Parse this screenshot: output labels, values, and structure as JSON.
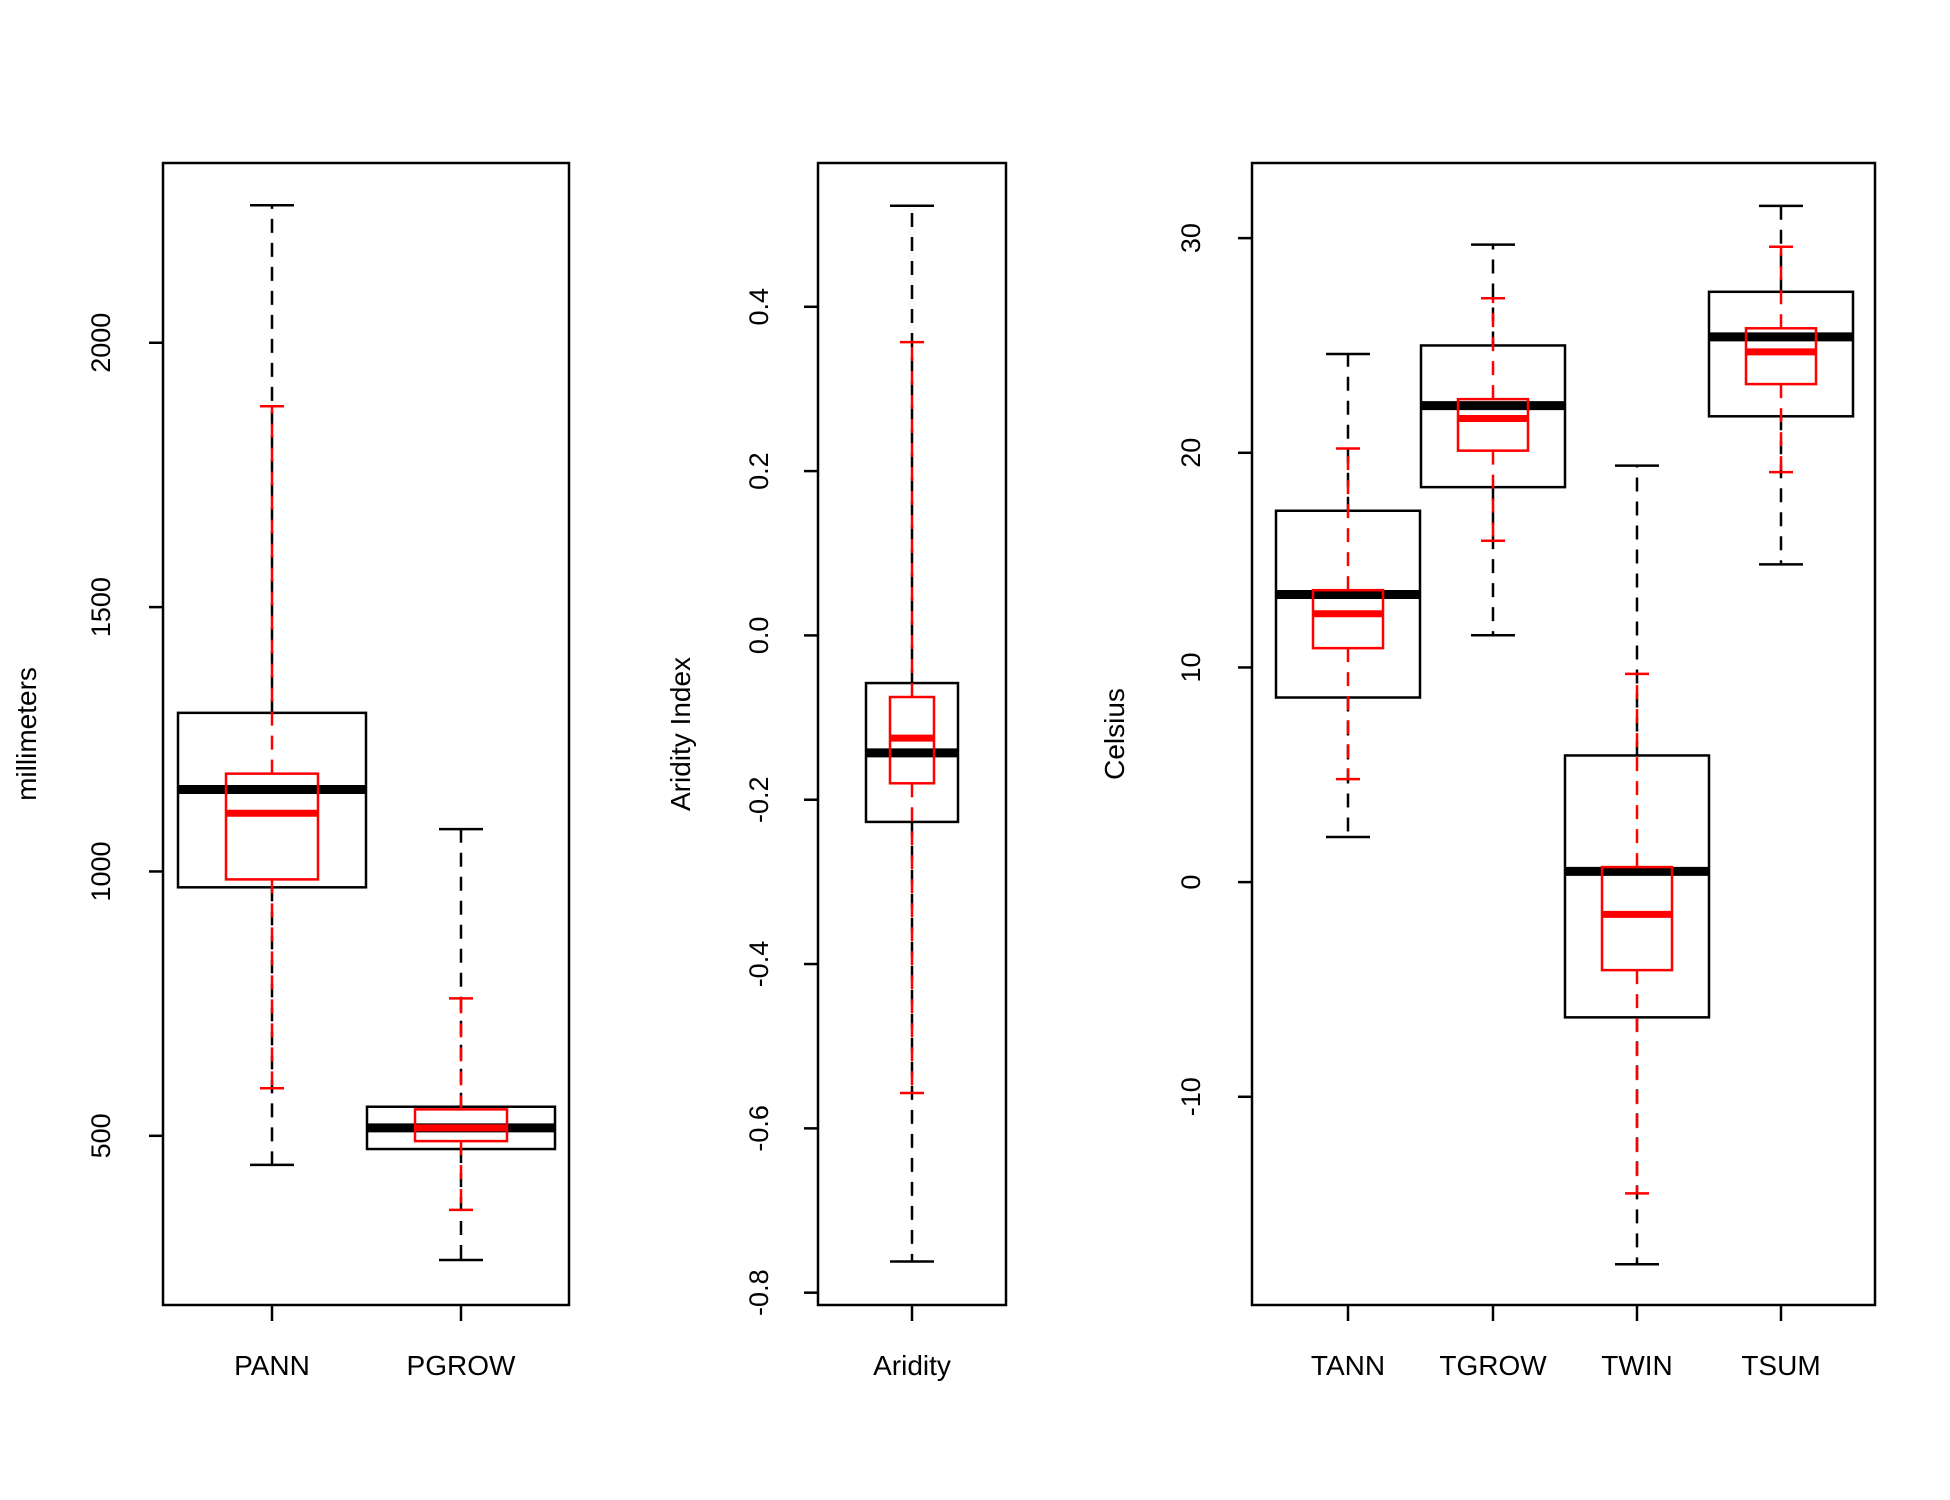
{
  "chart_data": [
    {
      "type": "boxplot",
      "ylabel": "millimeters",
      "ylim": [
        180,
        2340
      ],
      "yticks": [
        500,
        1000,
        1500,
        2000
      ],
      "ytick_labels": [
        "500",
        "1000",
        "1500",
        "2000"
      ],
      "categories": [
        "PANN",
        "PGROW"
      ],
      "series": [
        {
          "color": "#000000",
          "whisker_style": "dashed",
          "boxes": [
            {
              "min": 445,
              "q1": 970,
              "median": 1155,
              "q3": 1300,
              "max": 2260
            },
            {
              "min": 265,
              "q1": 475,
              "median": 515,
              "q3": 555,
              "max": 1080
            }
          ]
        },
        {
          "color": "#ff0000",
          "whisker_style": "dashed",
          "boxes": [
            {
              "min": 590,
              "q1": 985,
              "median": 1110,
              "q3": 1185,
              "max": 1880
            },
            {
              "min": 360,
              "q1": 490,
              "median": 515,
              "q3": 550,
              "max": 760
            }
          ]
        }
      ]
    },
    {
      "type": "boxplot",
      "ylabel": "Aridity Index",
      "ylim": [
        -0.815,
        0.575
      ],
      "yticks": [
        -0.8,
        -0.6,
        -0.4,
        -0.2,
        0.0,
        0.2,
        0.4
      ],
      "ytick_labels": [
        "-0.8",
        "-0.6",
        "-0.4",
        "-0.2",
        "0.0",
        "0.2",
        "0.4"
      ],
      "categories": [
        "Aridity"
      ],
      "series": [
        {
          "color": "#000000",
          "whisker_style": "dashed",
          "boxes": [
            {
              "min": -0.762,
              "q1": -0.227,
              "median": -0.143,
              "q3": -0.058,
              "max": 0.523
            }
          ]
        },
        {
          "color": "#ff0000",
          "whisker_style": "dashed",
          "boxes": [
            {
              "min": -0.557,
              "q1": -0.18,
              "median": -0.125,
              "q3": -0.075,
              "max": 0.357
            }
          ]
        }
      ]
    },
    {
      "type": "boxplot",
      "ylabel": "Celsius",
      "ylim": [
        -19.7,
        33.5
      ],
      "yticks": [
        -10,
        0,
        10,
        20,
        30
      ],
      "ytick_labels": [
        "-10",
        "0",
        "10",
        "20",
        "30"
      ],
      "categories": [
        "TANN",
        "TGROW",
        "TWIN",
        "TSUM"
      ],
      "series": [
        {
          "color": "#000000",
          "whisker_style": "dashed",
          "boxes": [
            {
              "min": 2.1,
              "q1": 8.6,
              "median": 13.4,
              "q3": 17.3,
              "max": 24.6
            },
            {
              "min": 11.5,
              "q1": 18.4,
              "median": 22.2,
              "q3": 25.0,
              "max": 29.7
            },
            {
              "min": -17.8,
              "q1": -6.3,
              "median": 0.5,
              "q3": 5.9,
              "max": 19.4
            },
            {
              "min": 14.8,
              "q1": 21.7,
              "median": 25.4,
              "q3": 27.5,
              "max": 31.5
            }
          ]
        },
        {
          "color": "#ff0000",
          "whisker_style": "dashed",
          "boxes": [
            {
              "min": 4.8,
              "q1": 10.9,
              "median": 12.5,
              "q3": 13.6,
              "max": 20.2
            },
            {
              "min": 15.9,
              "q1": 20.1,
              "median": 21.6,
              "q3": 22.5,
              "max": 27.2
            },
            {
              "min": -14.5,
              "q1": -4.1,
              "median": -1.5,
              "q3": 0.7,
              "max": 9.7
            },
            {
              "min": 19.1,
              "q1": 23.2,
              "median": 24.7,
              "q3": 25.8,
              "max": 29.6
            }
          ]
        }
      ]
    }
  ]
}
